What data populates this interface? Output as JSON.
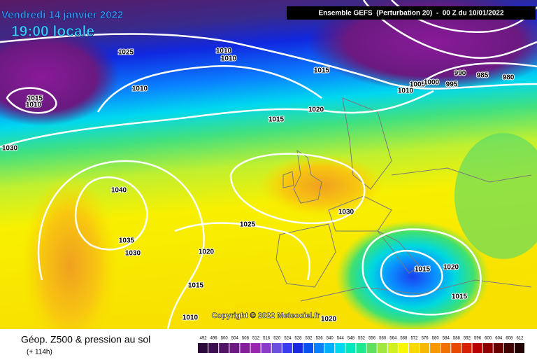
{
  "header": {
    "date": "Vendredi 14 janvier 2022",
    "time": "19:00 locale",
    "model": "Ensemble GEFS  (Perturbation 20)  -  00 Z du 10/01/2022"
  },
  "copyright": "Copyright © 2022 Meteociel.fr",
  "isobar_labels": [
    1025,
    1010,
    1010,
    1015,
    1010,
    1015,
    1010,
    1020,
    1015,
    1030,
    1010,
    1005,
    1000,
    990,
    985,
    980,
    995,
    1040,
    1030,
    1025,
    1035,
    1030,
    1020,
    1015,
    1020,
    1015,
    1015,
    1010,
    1020
  ],
  "legend": {
    "title": "Géop. Z500 & pression au sol",
    "lead": "(+ 114h)",
    "scale": {
      "values": [
        492,
        496,
        500,
        504,
        508,
        512,
        516,
        520,
        524,
        528,
        532,
        536,
        540,
        544,
        548,
        552,
        556,
        560,
        564,
        568,
        572,
        576,
        580,
        584,
        588,
        592,
        596,
        600,
        604,
        608,
        612
      ],
      "colors": [
        "#2b0a3a",
        "#3c0f4f",
        "#521466",
        "#6a1a80",
        "#821f99",
        "#9a26b0",
        "#8a3cc8",
        "#6a4fe0",
        "#3a3cf0",
        "#1a28e0",
        "#0a50f0",
        "#0a80ff",
        "#00b0ff",
        "#00d8f0",
        "#00e8c0",
        "#20e890",
        "#60e060",
        "#a0e840",
        "#d0f020",
        "#f8f800",
        "#f8d800",
        "#f8b800",
        "#f89800",
        "#f07000",
        "#e84800",
        "#d82000",
        "#b80000",
        "#900000",
        "#680000",
        "#400000",
        "#200000"
      ]
    }
  }
}
